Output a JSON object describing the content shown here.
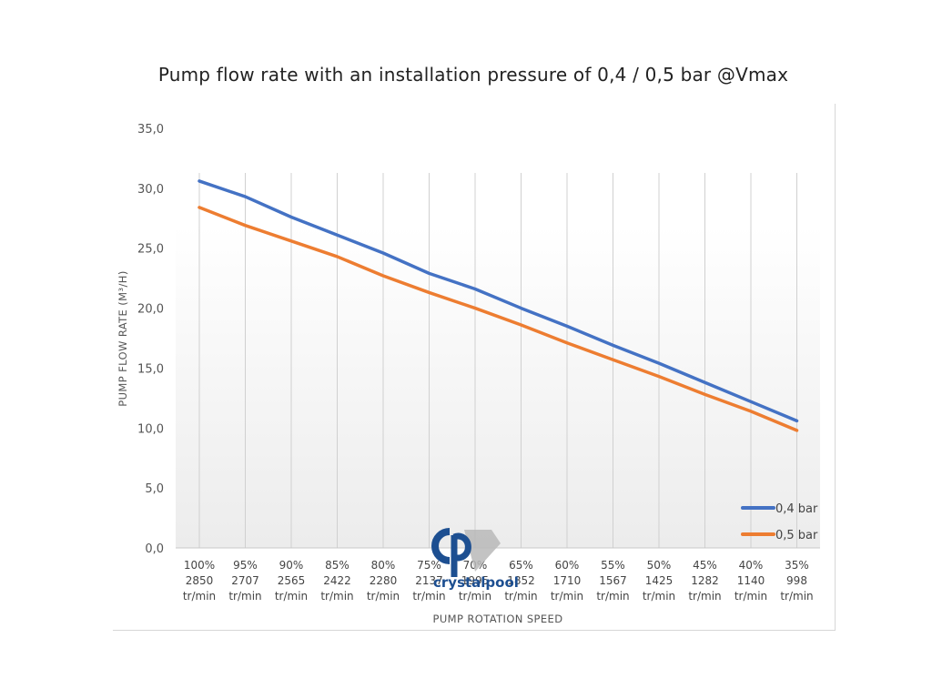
{
  "chart_data": {
    "type": "line",
    "title": "Pump flow rate with an installation pressure of 0,4 / 0,5 bar @Vmax",
    "xlabel": "PUMP ROTATION SPEED",
    "ylabel": "PUMP FLOW RATE (M³/H)",
    "ylim": [
      0,
      35
    ],
    "yticks": [
      "0,0",
      "5,0",
      "10,0",
      "15,0",
      "20,0",
      "25,0",
      "30,0",
      "35,0"
    ],
    "categories": [
      {
        "pct": "100%",
        "rpm": "2850",
        "unit": "tr/min"
      },
      {
        "pct": "95%",
        "rpm": "2707",
        "unit": "tr/min"
      },
      {
        "pct": "90%",
        "rpm": "2565",
        "unit": "tr/min"
      },
      {
        "pct": "85%",
        "rpm": "2422",
        "unit": "tr/min"
      },
      {
        "pct": "80%",
        "rpm": "2280",
        "unit": "tr/min"
      },
      {
        "pct": "75%",
        "rpm": "2137",
        "unit": "tr/min"
      },
      {
        "pct": "70%",
        "rpm": "1995",
        "unit": "tr/min"
      },
      {
        "pct": "65%",
        "rpm": "1852",
        "unit": "tr/min"
      },
      {
        "pct": "60%",
        "rpm": "1710",
        "unit": "tr/min"
      },
      {
        "pct": "55%",
        "rpm": "1567",
        "unit": "tr/min"
      },
      {
        "pct": "50%",
        "rpm": "1425",
        "unit": "tr/min"
      },
      {
        "pct": "45%",
        "rpm": "1282",
        "unit": "tr/min"
      },
      {
        "pct": "40%",
        "rpm": "1140",
        "unit": "tr/min"
      },
      {
        "pct": "35%",
        "rpm": "998",
        "unit": "tr/min"
      }
    ],
    "series": [
      {
        "name": "0,4 bar",
        "color": "#4472c4",
        "values": [
          30.6,
          29.3,
          27.6,
          26.1,
          24.6,
          22.9,
          21.6,
          20.0,
          18.5,
          16.9,
          15.4,
          13.8,
          12.2,
          10.6
        ]
      },
      {
        "name": "0,5 bar",
        "color": "#ed7d31",
        "values": [
          28.4,
          26.9,
          25.6,
          24.3,
          22.7,
          21.3,
          20.0,
          18.6,
          17.1,
          15.7,
          14.3,
          12.8,
          11.4,
          9.8
        ]
      }
    ],
    "grid": "vertical",
    "legend": "bottom-right"
  },
  "logo": {
    "text": "crystalpool",
    "monogram": "cp",
    "color": "#1d4f91"
  }
}
